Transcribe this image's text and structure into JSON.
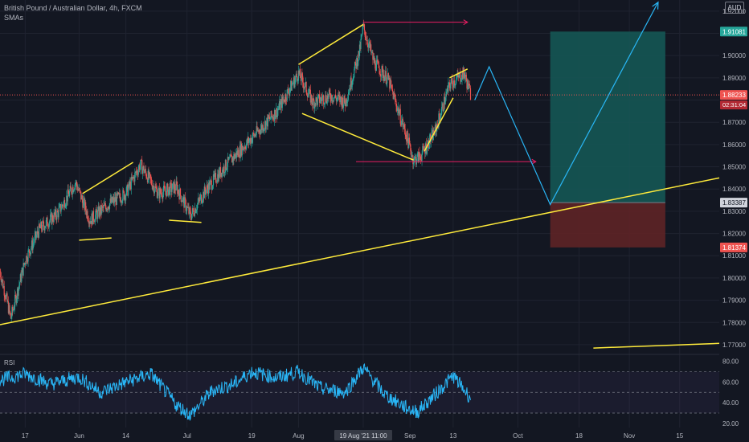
{
  "header": {
    "title": "British Pound / Australian Dollar, 4h, FXCM",
    "indicator": "SMAs",
    "currency_button": "AUD"
  },
  "rsi_panel": {
    "label": "RSI"
  },
  "colors": {
    "background": "#131722",
    "grid": "#1f2330",
    "bull": "#26a69a",
    "bear": "#ef5350",
    "trendline": "#ffeb3b",
    "projection": "#29b6f6",
    "target_line": "#e91e63",
    "profit_zone": "#155754",
    "loss_zone": "#5e2326",
    "rsi_line": "#29b6f6",
    "axis_text": "#b2b5be"
  },
  "chart_data": [
    {
      "type": "candlestick",
      "title": "British Pound / Australian Dollar, 4h, FXCM",
      "y_ticks": [
        1.92,
        1.91,
        1.9,
        1.89,
        1.88,
        1.87,
        1.86,
        1.85,
        1.84,
        1.83,
        1.82,
        1.81,
        1.8,
        1.79,
        1.78,
        1.77
      ],
      "y_tick_labels": [
        "1.92000",
        "1.91081",
        "1.90000",
        "1.89000",
        "1.88233",
        "02:31:04",
        "1.87000",
        "1.86000",
        "1.85000",
        "1.84000",
        "1.83387",
        "1.83000",
        "1.82000",
        "1.81374",
        "1.81000",
        "1.80000",
        "1.79000",
        "1.78000",
        "1.77000"
      ],
      "ylim": [
        1.766,
        1.925
      ],
      "x_ticks": [
        "17",
        "Jun",
        "14",
        "Jul",
        "19",
        "Aug",
        "19 Aug '21  11:00",
        "Sep",
        "13",
        "Oct",
        "18",
        "Nov",
        "15"
      ],
      "x_tick_dates": [
        "2021-05-17",
        "2021-06-01",
        "2021-06-14",
        "2021-07-01",
        "2021-07-19",
        "2021-08-01",
        "2021-08-19",
        "2021-09-01",
        "2021-09-13",
        "2021-10-01",
        "2021-10-18",
        "2021-11-01",
        "2021-11-15"
      ],
      "xlim": [
        "2021-05-10",
        "2021-11-26"
      ],
      "price_path": [
        [
          "2021-05-10",
          1.803
        ],
        [
          "2021-05-13",
          1.782
        ],
        [
          "2021-05-17",
          1.808
        ],
        [
          "2021-05-21",
          1.822
        ],
        [
          "2021-05-26",
          1.829
        ],
        [
          "2021-05-31",
          1.843
        ],
        [
          "2021-06-04",
          1.826
        ],
        [
          "2021-06-09",
          1.833
        ],
        [
          "2021-06-14",
          1.838
        ],
        [
          "2021-06-18",
          1.851
        ],
        [
          "2021-06-23",
          1.838
        ],
        [
          "2021-06-28",
          1.841
        ],
        [
          "2021-07-02",
          1.828
        ],
        [
          "2021-07-06",
          1.839
        ],
        [
          "2021-07-12",
          1.851
        ],
        [
          "2021-07-19",
          1.863
        ],
        [
          "2021-07-26",
          1.875
        ],
        [
          "2021-08-01",
          1.892
        ],
        [
          "2021-08-05",
          1.879
        ],
        [
          "2021-08-10",
          1.882
        ],
        [
          "2021-08-14",
          1.879
        ],
        [
          "2021-08-18",
          1.902
        ],
        [
          "2021-08-19",
          1.913
        ],
        [
          "2021-08-22",
          1.897
        ],
        [
          "2021-08-26",
          1.889
        ],
        [
          "2021-08-31",
          1.864
        ],
        [
          "2021-09-02",
          1.853
        ],
        [
          "2021-09-04",
          1.855
        ],
        [
          "2021-09-08",
          1.866
        ],
        [
          "2021-09-12",
          1.887
        ],
        [
          "2021-09-16",
          1.892
        ],
        [
          "2021-09-18",
          1.882
        ]
      ],
      "last_price": 1.88233,
      "last_price_label": "1.88233",
      "countdown_label": "02:31:04",
      "trendlines": [
        {
          "from": [
            "2021-05-10",
            1.779
          ],
          "to": [
            "2021-11-26",
            1.845
          ]
        },
        {
          "from": [
            "2021-06-02",
            1.838
          ],
          "to": [
            "2021-06-16",
            1.852
          ]
        },
        {
          "from": [
            "2021-06-01",
            1.817
          ],
          "to": [
            "2021-06-10",
            1.818
          ]
        },
        {
          "from": [
            "2021-06-26",
            1.826
          ],
          "to": [
            "2021-07-05",
            1.825
          ]
        },
        {
          "from": [
            "2021-08-01",
            1.896
          ],
          "to": [
            "2021-08-19",
            1.914
          ]
        },
        {
          "from": [
            "2021-08-02",
            1.874
          ],
          "to": [
            "2021-09-02",
            1.853
          ]
        },
        {
          "from": [
            "2021-09-05",
            1.857
          ],
          "to": [
            "2021-09-13",
            1.881
          ]
        },
        {
          "from": [
            "2021-09-12",
            1.89
          ],
          "to": [
            "2021-09-17",
            1.894
          ]
        },
        {
          "from": [
            "2021-10-22",
            1.7685
          ],
          "to": [
            "2021-11-26",
            1.7706
          ]
        }
      ],
      "horizontal_rays": [
        {
          "from": "2021-08-19",
          "to": "2021-09-17",
          "price": 1.915
        },
        {
          "from": "2021-08-17",
          "to": "2021-10-06",
          "price": 1.8523
        }
      ],
      "projection_path": [
        [
          "2021-09-19",
          1.88
        ],
        [
          "2021-09-23",
          1.895
        ],
        [
          "2021-10-10",
          1.833
        ],
        [
          "2021-11-09",
          1.924
        ]
      ],
      "position": {
        "start": "2021-10-10",
        "end": "2021-11-11",
        "entry": 1.83387,
        "target": 1.91081,
        "stop": 1.81374,
        "entry_label": "1.83387",
        "target_label": "1.91081",
        "stop_label": "1.81374"
      }
    },
    {
      "type": "line",
      "title": "RSI",
      "y_ticks": [
        80,
        60,
        40,
        20
      ],
      "y_tick_labels": [
        "80.00",
        "60.00",
        "40.00",
        "20.00"
      ],
      "ylim": [
        16,
        86
      ],
      "band": [
        30,
        70
      ],
      "midline": 50,
      "x": [
        "2021-05-10",
        "2021-05-17",
        "2021-05-24",
        "2021-06-01",
        "2021-06-07",
        "2021-06-14",
        "2021-06-21",
        "2021-06-28",
        "2021-07-02",
        "2021-07-08",
        "2021-07-14",
        "2021-07-19",
        "2021-07-26",
        "2021-08-01",
        "2021-08-07",
        "2021-08-14",
        "2021-08-19",
        "2021-08-25",
        "2021-08-31",
        "2021-09-03",
        "2021-09-08",
        "2021-09-13",
        "2021-09-18"
      ],
      "values": [
        62,
        68,
        58,
        65,
        50,
        60,
        68,
        38,
        28,
        52,
        58,
        70,
        64,
        70,
        54,
        50,
        74,
        48,
        35,
        31,
        48,
        66,
        44
      ]
    }
  ]
}
